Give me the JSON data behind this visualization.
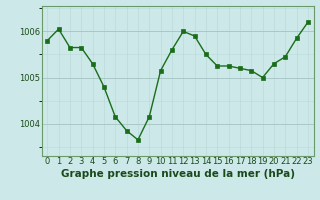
{
  "x": [
    0,
    1,
    2,
    3,
    4,
    5,
    6,
    7,
    8,
    9,
    10,
    11,
    12,
    13,
    14,
    15,
    16,
    17,
    18,
    19,
    20,
    21,
    22,
    23
  ],
  "y": [
    1005.8,
    1006.05,
    1005.65,
    1005.65,
    1005.3,
    1004.8,
    1004.15,
    1003.85,
    1003.65,
    1004.15,
    1005.15,
    1005.6,
    1006.0,
    1005.9,
    1005.5,
    1005.25,
    1005.25,
    1005.2,
    1005.15,
    1005.0,
    1005.3,
    1005.45,
    1005.85,
    1006.2
  ],
  "line_color": "#1a6e1a",
  "marker_color": "#1a6e1a",
  "bg_color": "#cce8e8",
  "grid_color_major": "#aac8c8",
  "grid_color_minor": "#bbdada",
  "xlabel": "Graphe pression niveau de la mer (hPa)",
  "xlabel_fontsize": 7.5,
  "yticks": [
    1004,
    1005,
    1006
  ],
  "ylim": [
    1003.3,
    1006.55
  ],
  "xlim": [
    -0.5,
    23.5
  ],
  "xtick_labels": [
    "0",
    "1",
    "2",
    "3",
    "4",
    "5",
    "6",
    "7",
    "8",
    "9",
    "10",
    "11",
    "12",
    "13",
    "14",
    "15",
    "16",
    "17",
    "18",
    "19",
    "20",
    "21",
    "22",
    "23"
  ],
  "tick_fontsize": 6.0,
  "figwidth": 3.2,
  "figheight": 2.0,
  "dpi": 100
}
